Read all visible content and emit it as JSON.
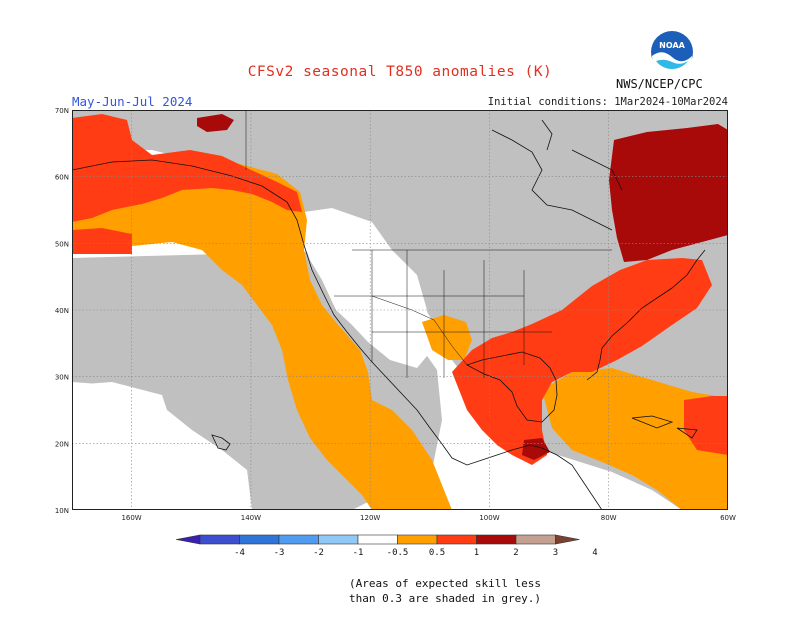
{
  "title": "CFSv2 seasonal T850 anomalies (K)",
  "subtitle": "May-Jun-Jul 2024",
  "initial_conditions": "Initial conditions: 1Mar2024-10Mar2024",
  "credit": "NWS/NCEP/CPC",
  "logo_text": "NOAA",
  "note": [
    "(Areas of expected skill less",
    "than 0.3 are shaded in grey.)"
  ],
  "lat_labels": [
    "70N",
    "60N",
    "50N",
    "40N",
    "30N",
    "20N",
    "10N"
  ],
  "lon_labels": [
    "160W",
    "140W",
    "120W",
    "100W",
    "80W",
    "60W"
  ],
  "colorbar": {
    "labels": [
      "-4",
      "-3",
      "-2",
      "-1",
      "-0.5",
      "0.5",
      "1",
      "2",
      "3",
      "4"
    ],
    "colors": [
      "#3a1fb0",
      "#3b4fd0",
      "#2f74d8",
      "#4f9cf0",
      "#90c8f8",
      "#ffffff",
      "#ff9f00",
      "#ff3c14",
      "#a80a0a",
      "#c4a090",
      "#7a4030"
    ]
  },
  "colors": {
    "grey": "#c0c0c0",
    "neutral": "#ffffff",
    "orange": "#ff9f00",
    "red": "#ff3c14",
    "darkred": "#a80a0a"
  }
}
